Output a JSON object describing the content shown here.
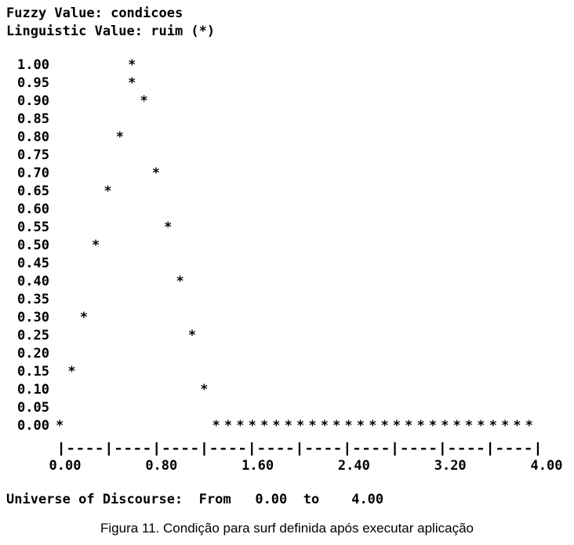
{
  "header": {
    "fuzzy_label": "Fuzzy Value:",
    "fuzzy_value": "condicoes",
    "linguistic_label": "Linguistic Value:",
    "linguistic_value": "ruim (*)"
  },
  "chart_data": {
    "type": "scatter",
    "marker": "*",
    "y_ticks": [
      "1.00",
      "0.95",
      "0.90",
      "0.85",
      "0.80",
      "0.75",
      "0.70",
      "0.65",
      "0.60",
      "0.55",
      "0.50",
      "0.45",
      "0.40",
      "0.35",
      "0.30",
      "0.25",
      "0.20",
      "0.15",
      "0.10",
      "0.05",
      "0.00"
    ],
    "x_ticks": [
      "0.00",
      "0.80",
      "1.60",
      "2.40",
      "3.20",
      "4.00"
    ],
    "axis_rule": "|----|----|----|----|----|----|----|----|----|----|",
    "xlim": [
      0,
      4
    ],
    "ylim": [
      0,
      1
    ],
    "points": [
      {
        "x": 0.0,
        "y": 0.0
      },
      {
        "x": 0.1,
        "y": 0.15
      },
      {
        "x": 0.2,
        "y": 0.3
      },
      {
        "x": 0.3,
        "y": 0.5
      },
      {
        "x": 0.4,
        "y": 0.65
      },
      {
        "x": 0.5,
        "y": 0.8
      },
      {
        "x": 0.6,
        "y": 0.95
      },
      {
        "x": 0.6,
        "y": 1.0
      },
      {
        "x": 0.7,
        "y": 0.9
      },
      {
        "x": 0.8,
        "y": 0.7
      },
      {
        "x": 0.9,
        "y": 0.55
      },
      {
        "x": 1.0,
        "y": 0.4
      },
      {
        "x": 1.1,
        "y": 0.25
      },
      {
        "x": 1.2,
        "y": 0.1
      }
    ],
    "zero_run": {
      "x_start": 1.3,
      "x_end": 3.9,
      "step": 0.1,
      "y": 0.0
    }
  },
  "universe": {
    "label": "Universe of Discourse:",
    "from_label": "From",
    "from_value": "0.00",
    "to_label": "to",
    "to_value": "4.00"
  },
  "caption": "Figura 11. Condição para surf definida após executar aplicação"
}
